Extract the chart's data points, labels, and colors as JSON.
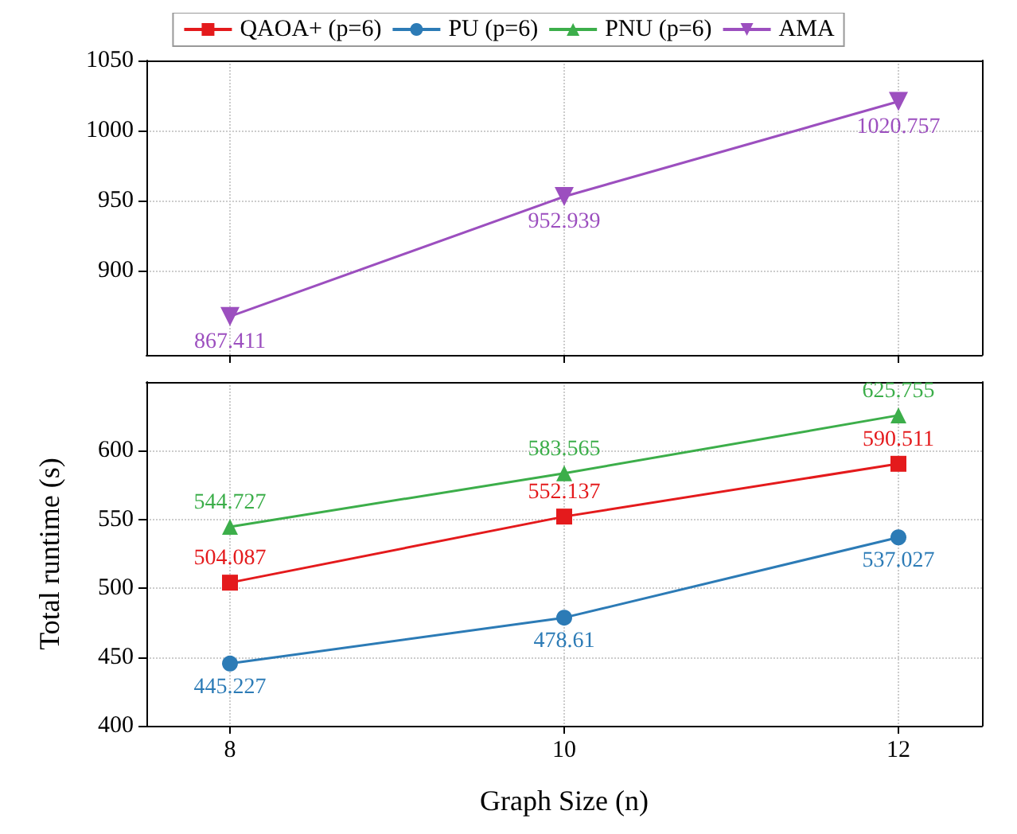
{
  "chart_data": [
    {
      "type": "line",
      "xlim": [
        7.5,
        12.5
      ],
      "xticks": [
        8,
        10,
        12
      ],
      "ylim": [
        840,
        1050
      ],
      "yticks": [
        900,
        950,
        1000,
        1050
      ],
      "tick_labels": "y",
      "grid": true,
      "legend": "top",
      "data_labels": true,
      "series": [
        {
          "name": "AMA",
          "color": "#9c4fbf",
          "marker": "triangle-down",
          "x": [
            8,
            10,
            12
          ],
          "values": [
            867.411,
            952.939,
            1020.757
          ]
        }
      ]
    },
    {
      "type": "line",
      "xlabel": "Graph Size (n)",
      "ylabel": "Total runtime (s)",
      "xlim": [
        7.5,
        12.5
      ],
      "xticks": [
        8,
        10,
        12
      ],
      "ylim": [
        400,
        650
      ],
      "yticks": [
        400,
        450,
        500,
        550,
        600
      ],
      "grid": true,
      "legend": "top",
      "data_labels": true,
      "series": [
        {
          "name": "QAOA+ (p=6)",
          "color": "#e41a1c",
          "marker": "square",
          "x": [
            8,
            10,
            12
          ],
          "values": [
            504.087,
            552.137,
            590.511
          ]
        },
        {
          "name": "PU (p=6)",
          "color": "#2c7bb6",
          "marker": "circle",
          "x": [
            8,
            10,
            12
          ],
          "values": [
            445.227,
            478.61,
            537.027
          ]
        },
        {
          "name": "PNU (p=6)",
          "color": "#3cae4a",
          "marker": "triangle",
          "x": [
            8,
            10,
            12
          ],
          "values": [
            544.727,
            583.565,
            625.755
          ]
        }
      ]
    }
  ]
}
